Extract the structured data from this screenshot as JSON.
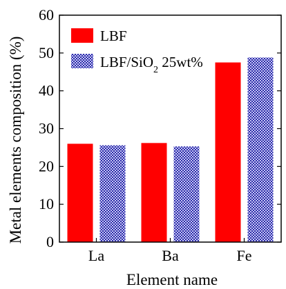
{
  "chart_data": {
    "type": "bar",
    "title": "",
    "xlabel": "Element name",
    "ylabel": "Metal elements composition (%)",
    "categories": [
      "La",
      "Ba",
      "Fe"
    ],
    "ylim": [
      0,
      60
    ],
    "yticks": [
      0,
      10,
      20,
      30,
      40,
      50,
      60
    ],
    "grid": false,
    "legend_position": "top-left",
    "series": [
      {
        "name": "LBF",
        "values": [
          26.0,
          26.2,
          47.5
        ],
        "color": "#ff0000",
        "pattern": "solid"
      },
      {
        "name": "LBF/SiO₂ 25wt%",
        "values": [
          25.6,
          25.3,
          48.8
        ],
        "color": "#5252c8",
        "pattern": "checker-blue"
      }
    ]
  },
  "legend": {
    "lbf_label": "LBF",
    "sio2_label_prefix": "LBF/SiO",
    "sio2_label_subscript": "2",
    "sio2_label_suffix": " 25wt%"
  }
}
